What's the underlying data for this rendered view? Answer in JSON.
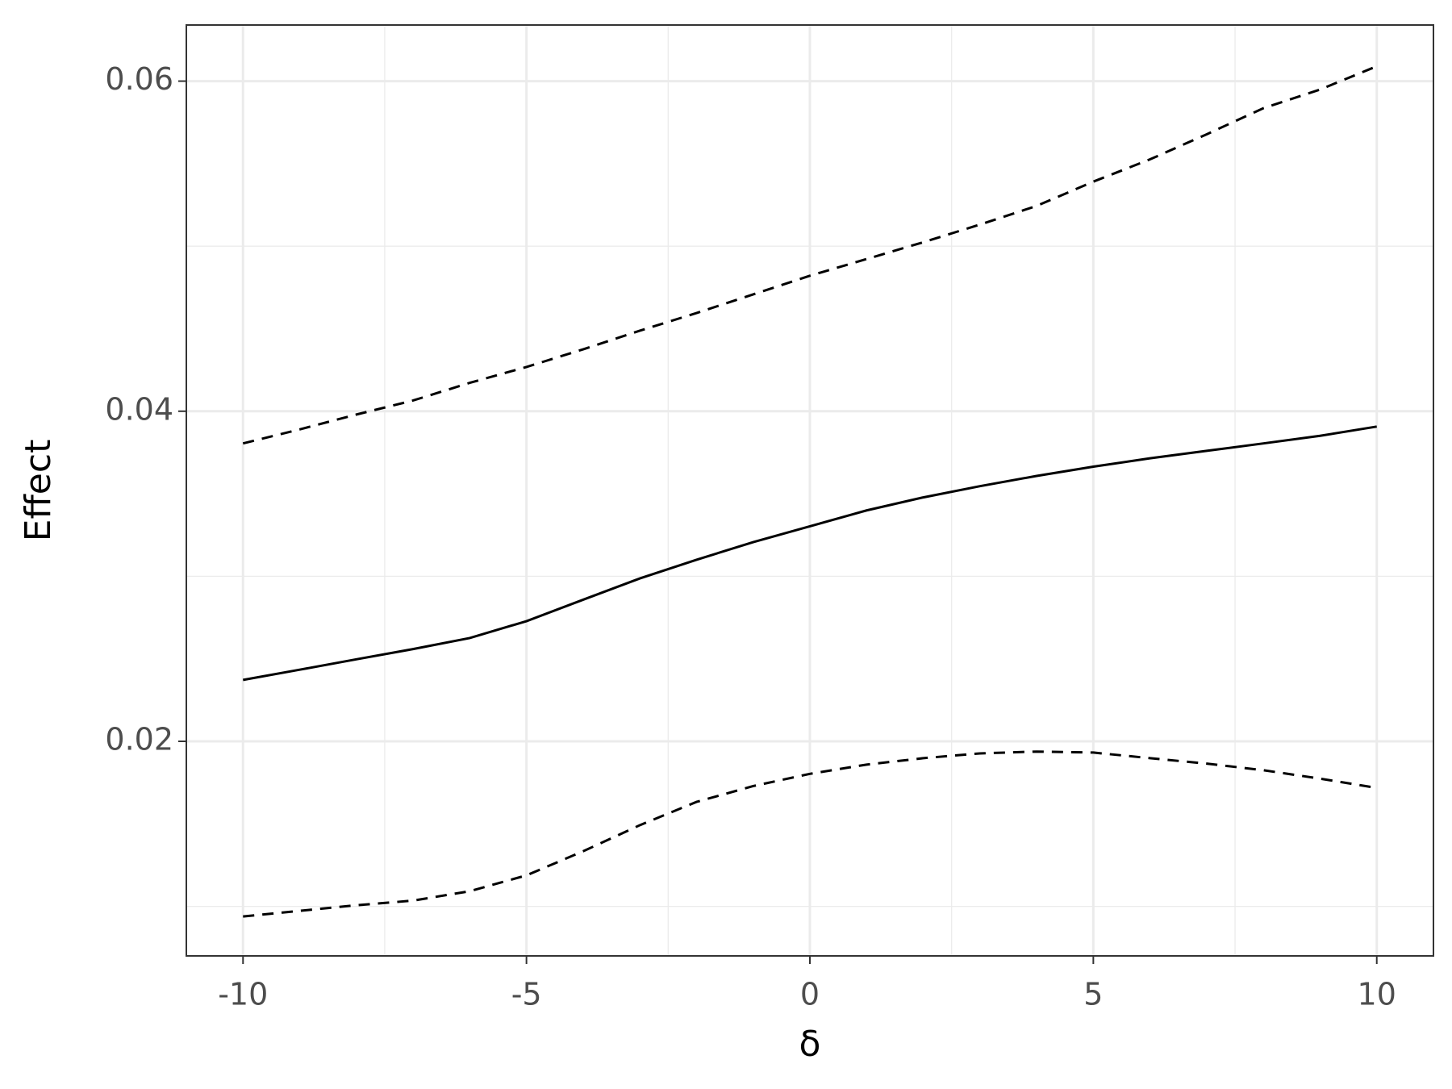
{
  "chart_data": {
    "type": "line",
    "xlabel": "δ",
    "ylabel": "Effect",
    "x": [
      -10,
      -9,
      -8,
      -7,
      -6,
      -5,
      -4,
      -3,
      -2,
      -1,
      0,
      1,
      2,
      3,
      4,
      5,
      6,
      7,
      8,
      9,
      10
    ],
    "series": [
      {
        "color": "#000000",
        "dash": "solid",
        "values": [
          0.02372,
          0.02434,
          0.02497,
          0.02559,
          0.02626,
          0.02728,
          0.02858,
          0.02987,
          0.031,
          0.03207,
          0.03303,
          0.03399,
          0.03478,
          0.03546,
          0.03608,
          0.03664,
          0.03715,
          0.0376,
          0.03805,
          0.03851,
          0.03907
        ]
      },
      {
        "color": "#000000",
        "dash": "dashed",
        "values": [
          0.03805,
          0.0389,
          0.0398,
          0.04065,
          0.04172,
          0.04268,
          0.04375,
          0.04488,
          0.04595,
          0.04708,
          0.04821,
          0.04922,
          0.05024,
          0.05131,
          0.05244,
          0.05391,
          0.05526,
          0.05678,
          0.05836,
          0.05949,
          0.0609
        ]
      },
      {
        "color": "#000000",
        "dash": "dashed",
        "values": [
          0.00939,
          0.00973,
          0.01007,
          0.01035,
          0.01092,
          0.01188,
          0.01334,
          0.01492,
          0.01633,
          0.01729,
          0.01803,
          0.01859,
          0.01898,
          0.01927,
          0.01938,
          0.01932,
          0.01898,
          0.01865,
          0.01825,
          0.01774,
          0.01718
        ]
      }
    ],
    "xlim": [
      -11,
      11
    ],
    "ylim": [
      0.007,
      0.0634
    ],
    "xticks": [
      -10,
      -5,
      0,
      5,
      10
    ],
    "yticks": [
      0.02,
      0.04,
      0.06
    ],
    "xminor": [
      -7.5,
      -2.5,
      2.5,
      7.5
    ],
    "yminor": [
      0.01,
      0.03,
      0.05
    ],
    "grid": true
  }
}
